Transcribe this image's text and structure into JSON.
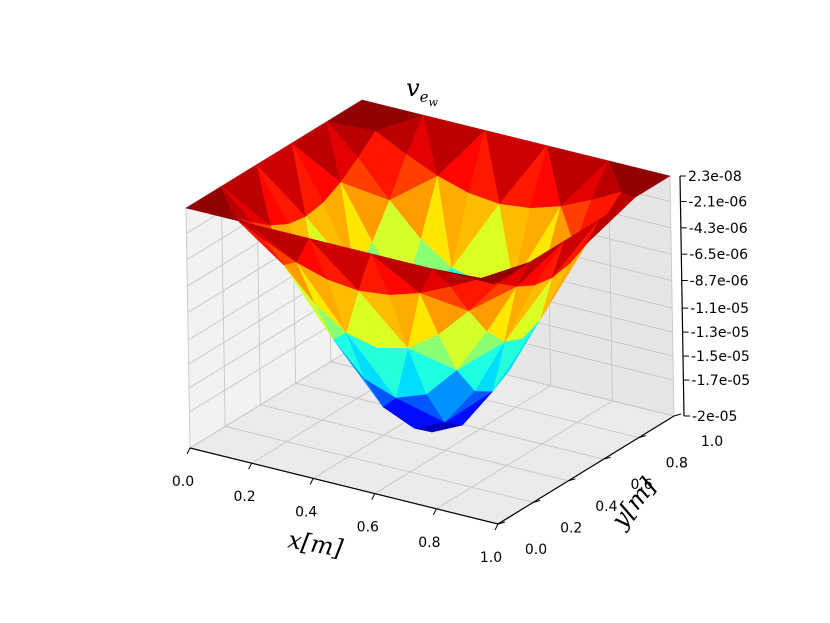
{
  "chart_data": {
    "type": "surface3d",
    "title": "v_{e_w}",
    "title_main": "v",
    "title_sub": "e",
    "title_subsub": "w",
    "xlabel": "x[m]",
    "ylabel": "y[m]",
    "zlabel": "",
    "colormap": "jet",
    "grid": true,
    "xlim": [
      0,
      1
    ],
    "ylim": [
      0,
      1
    ],
    "zlim": [
      -2e-05,
      2.3e-08
    ],
    "x_ticks": [
      "0.0",
      "0.2",
      "0.4",
      "0.6",
      "0.8",
      "1.0"
    ],
    "y_ticks": [
      "0.0",
      "0.2",
      "0.4",
      "0.6",
      "0.8",
      "1.0"
    ],
    "z_ticks": [
      "2.3e-08",
      "-2.1e-06",
      "-4.3e-06",
      "-6.5e-06",
      "-8.7e-06",
      "-1.1e-05",
      "-1.3e-05",
      "-1.5e-05",
      "-1.7e-05",
      "-2e-05"
    ],
    "z_tick_values": [
      2.3e-08,
      -2.1e-06,
      -4.3e-06,
      -6.5e-06,
      -8.7e-06,
      -1.1e-05,
      -1.3e-05,
      -1.5e-05,
      -1.7e-05,
      -2e-05
    ],
    "grid_x": [
      0.0,
      0.1,
      0.2,
      0.3,
      0.4,
      0.5,
      0.6,
      0.7,
      0.8,
      0.9,
      1.0
    ],
    "grid_y": [
      0.0,
      0.1,
      0.2,
      0.3,
      0.4,
      0.5,
      0.6,
      0.7,
      0.8,
      0.9,
      1.0
    ],
    "z_min": -2e-05,
    "z_max": 2.3e-08
  }
}
